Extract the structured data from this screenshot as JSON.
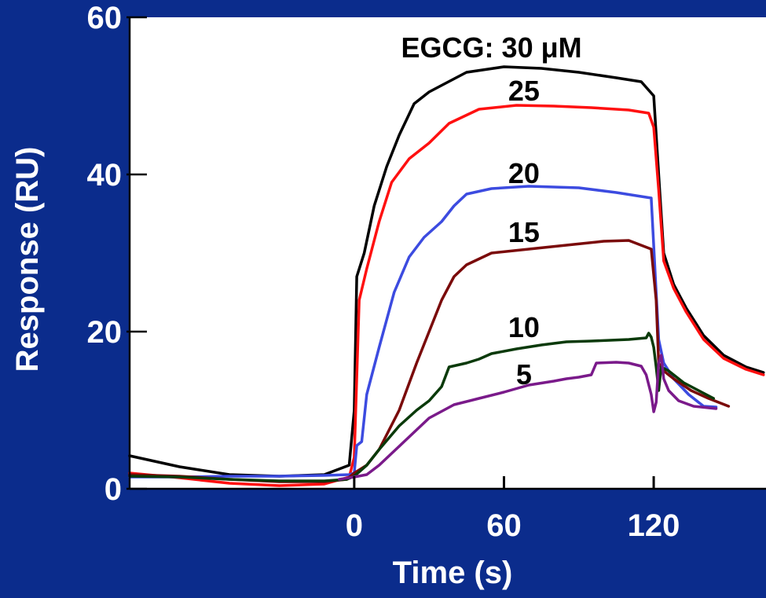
{
  "chart_data": {
    "type": "line",
    "title": "",
    "xlabel": "Time (s)",
    "ylabel": "Response (RU)",
    "xlim": [
      -90,
      165
    ],
    "ylim": [
      0,
      60
    ],
    "x_ticks": [
      0,
      60,
      120
    ],
    "y_ticks": [
      0,
      20,
      40,
      60
    ],
    "grid": false,
    "legend": "none",
    "annotation_prefix": "EGCG: ",
    "series": [
      {
        "name": "30 μM",
        "color": "#000000",
        "points": [
          [
            -90,
            4.2
          ],
          [
            -70,
            2.8
          ],
          [
            -50,
            1.8
          ],
          [
            -30,
            1.6
          ],
          [
            -12,
            1.8
          ],
          [
            -2,
            3
          ],
          [
            0,
            10
          ],
          [
            1,
            27
          ],
          [
            4,
            30
          ],
          [
            8,
            36
          ],
          [
            13,
            41
          ],
          [
            18,
            45
          ],
          [
            24,
            49
          ],
          [
            30,
            50.5
          ],
          [
            36,
            51.5
          ],
          [
            45,
            53
          ],
          [
            60,
            53.7
          ],
          [
            75,
            53.5
          ],
          [
            90,
            53
          ],
          [
            105,
            52.3
          ],
          [
            115,
            51.8
          ],
          [
            120,
            50
          ],
          [
            122,
            40
          ],
          [
            124,
            30
          ],
          [
            128,
            26
          ],
          [
            133,
            23
          ],
          [
            140,
            19.5
          ],
          [
            148,
            17
          ],
          [
            157,
            15.5
          ],
          [
            164,
            14.8
          ]
        ]
      },
      {
        "name": "25",
        "color": "#ff1010",
        "points": [
          [
            -90,
            2
          ],
          [
            -70,
            1.4
          ],
          [
            -50,
            0.7
          ],
          [
            -30,
            0.4
          ],
          [
            -12,
            0.6
          ],
          [
            -2,
            1.5
          ],
          [
            0,
            4
          ],
          [
            2,
            24
          ],
          [
            5,
            28
          ],
          [
            10,
            34
          ],
          [
            15,
            39
          ],
          [
            22,
            42
          ],
          [
            30,
            44
          ],
          [
            38,
            46.5
          ],
          [
            50,
            48.3
          ],
          [
            65,
            48.8
          ],
          [
            80,
            48.7
          ],
          [
            95,
            48.5
          ],
          [
            110,
            48.2
          ],
          [
            118,
            47.8
          ],
          [
            120,
            46
          ],
          [
            122,
            38
          ],
          [
            124,
            29
          ],
          [
            128,
            25.5
          ],
          [
            133,
            22.5
          ],
          [
            140,
            19
          ],
          [
            148,
            16.6
          ],
          [
            157,
            15.2
          ],
          [
            164,
            14.5
          ]
        ]
      },
      {
        "name": "20",
        "color": "#3c4be0",
        "points": [
          [
            -90,
            1.5
          ],
          [
            -70,
            1.5
          ],
          [
            -50,
            1.6
          ],
          [
            -30,
            1.6
          ],
          [
            -12,
            1.7
          ],
          [
            -2,
            1.8
          ],
          [
            0,
            2
          ],
          [
            1,
            5.5
          ],
          [
            3,
            6
          ],
          [
            5,
            12
          ],
          [
            10,
            18
          ],
          [
            16,
            25
          ],
          [
            22,
            29.5
          ],
          [
            28,
            32
          ],
          [
            35,
            34
          ],
          [
            40,
            36
          ],
          [
            45,
            37.5
          ],
          [
            55,
            38.2
          ],
          [
            70,
            38.5
          ],
          [
            90,
            38.3
          ],
          [
            105,
            37.7
          ],
          [
            115,
            37.2
          ],
          [
            119,
            37
          ],
          [
            121,
            25
          ],
          [
            122,
            19
          ],
          [
            124,
            16
          ],
          [
            128,
            14
          ],
          [
            134,
            12
          ],
          [
            140,
            10.5
          ],
          [
            145,
            10.4
          ]
        ]
      },
      {
        "name": "15",
        "color": "#7a0a0a",
        "points": [
          [
            -90,
            1.8
          ],
          [
            -70,
            1.6
          ],
          [
            -50,
            1.2
          ],
          [
            -30,
            0.9
          ],
          [
            -12,
            0.9
          ],
          [
            -3,
            1.2
          ],
          [
            0,
            2
          ],
          [
            5,
            3
          ],
          [
            10,
            5
          ],
          [
            18,
            10
          ],
          [
            25,
            16
          ],
          [
            30,
            20
          ],
          [
            35,
            24
          ],
          [
            40,
            27
          ],
          [
            45,
            28.5
          ],
          [
            55,
            30
          ],
          [
            70,
            30.5
          ],
          [
            85,
            31
          ],
          [
            100,
            31.5
          ],
          [
            110,
            31.6
          ],
          [
            119,
            30.5
          ],
          [
            121,
            24
          ],
          [
            122,
            16
          ],
          [
            124,
            15
          ],
          [
            128,
            14
          ],
          [
            135,
            12.5
          ],
          [
            142,
            11.5
          ],
          [
            150,
            10.5
          ]
        ]
      },
      {
        "name": "10",
        "color": "#0a3a0a",
        "points": [
          [
            -90,
            1.6
          ],
          [
            -70,
            1.5
          ],
          [
            -50,
            1.2
          ],
          [
            -30,
            1
          ],
          [
            -12,
            1
          ],
          [
            -3,
            1.2
          ],
          [
            0,
            1.6
          ],
          [
            5,
            3
          ],
          [
            10,
            5
          ],
          [
            18,
            8
          ],
          [
            25,
            10
          ],
          [
            30,
            11.2
          ],
          [
            35,
            13
          ],
          [
            38,
            15.5
          ],
          [
            45,
            16
          ],
          [
            50,
            16.5
          ],
          [
            55,
            17.2
          ],
          [
            65,
            17.8
          ],
          [
            75,
            18.3
          ],
          [
            85,
            18.7
          ],
          [
            95,
            18.8
          ],
          [
            110,
            19
          ],
          [
            117,
            19.2
          ],
          [
            118,
            19.8
          ],
          [
            119,
            19.3
          ],
          [
            120,
            18
          ],
          [
            121,
            15.5
          ],
          [
            122,
            12.5
          ],
          [
            123,
            15.5
          ],
          [
            126,
            15
          ],
          [
            132,
            13.5
          ],
          [
            138,
            12.5
          ],
          [
            144,
            11.5
          ]
        ]
      },
      {
        "name": "5",
        "color": "#7a1a8a",
        "points": [
          [
            -6,
            1.2
          ],
          [
            0,
            1.5
          ],
          [
            5,
            1.8
          ],
          [
            10,
            3
          ],
          [
            15,
            4.5
          ],
          [
            20,
            6
          ],
          [
            25,
            7.5
          ],
          [
            30,
            9
          ],
          [
            40,
            10.7
          ],
          [
            50,
            11.5
          ],
          [
            60,
            12.3
          ],
          [
            70,
            13.2
          ],
          [
            80,
            13.7
          ],
          [
            85,
            14
          ],
          [
            90,
            14.2
          ],
          [
            95,
            14.5
          ],
          [
            97,
            16
          ],
          [
            105,
            16.1
          ],
          [
            110,
            16
          ],
          [
            115,
            15.6
          ],
          [
            117,
            14.5
          ],
          [
            119,
            12
          ],
          [
            120,
            9.8
          ],
          [
            121,
            11
          ],
          [
            122,
            16
          ],
          [
            123,
            17
          ],
          [
            124,
            14
          ],
          [
            126,
            12.5
          ],
          [
            130,
            11.2
          ],
          [
            136,
            10.5
          ],
          [
            145,
            10.2
          ]
        ]
      }
    ]
  }
}
